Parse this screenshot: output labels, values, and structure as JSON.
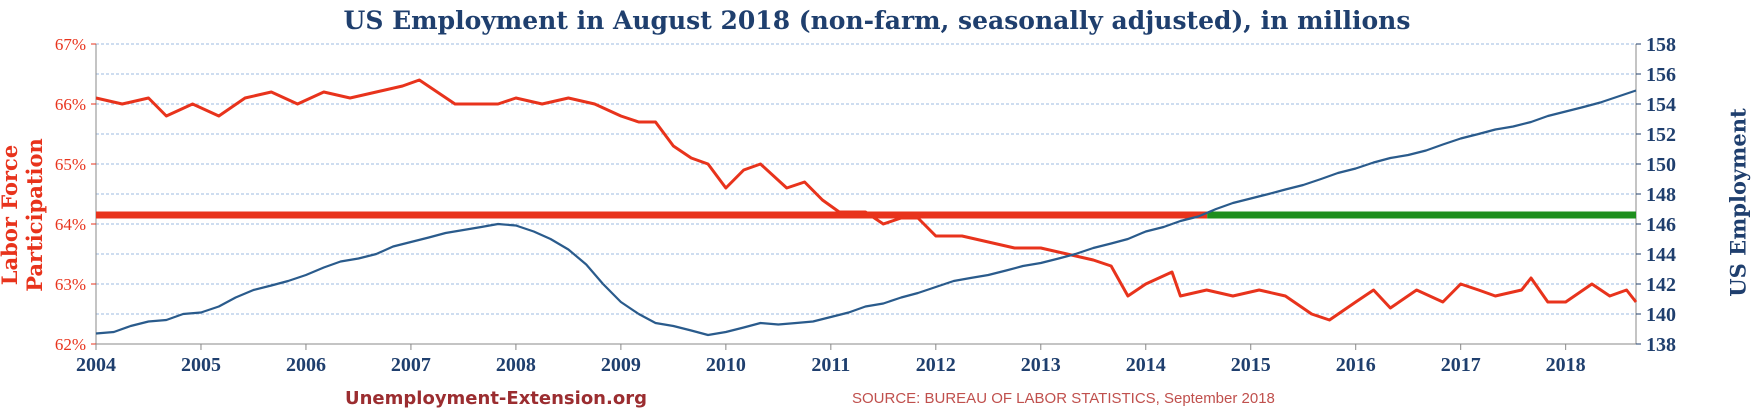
{
  "title": "US Employment in August 2018 (non-farm, seasonally adjusted), in millions",
  "left_axis_label": "Labor Force Participation",
  "right_axis_label": "US Employment",
  "footer_site": "Unemployment-Extension.org",
  "footer_source": "SOURCE: BUREAU OF LABOR STATISTICS,  September 2018",
  "colors": {
    "participation": "#e8331c",
    "employment": "#2a5b8c",
    "reference_above": "#1e8f1e",
    "reference_below": "#e8331c",
    "left_axis_text": "#e8331c",
    "right_axis_text": "#1f3f6e",
    "x_axis_text": "#1f3f6e",
    "grid": "#9dbbe0"
  },
  "chart_data": {
    "type": "line",
    "x_range": [
      2004.0,
      2018.67
    ],
    "x_ticks": [
      "2004",
      "2005",
      "2006",
      "2007",
      "2008",
      "2009",
      "2010",
      "2011",
      "2012",
      "2013",
      "2014",
      "2015",
      "2016",
      "2017",
      "2018"
    ],
    "y_left": {
      "range": [
        62,
        67
      ],
      "ticks": [
        "62%",
        "63%",
        "64%",
        "65%",
        "66%",
        "67%"
      ],
      "label": "Labor Force Participation"
    },
    "y_right": {
      "range": [
        138,
        158
      ],
      "ticks": [
        "138",
        "140",
        "142",
        "144",
        "146",
        "148",
        "150",
        "152",
        "154",
        "156",
        "158"
      ],
      "label": "US Employment"
    },
    "grid": true,
    "reference_line": {
      "axis": "left",
      "value": 64.15,
      "description": "green where employment is above it, red where below"
    },
    "series": [
      {
        "name": "Labor Force Participation",
        "axis": "left",
        "x": [
          2004.0,
          2004.25,
          2004.5,
          2004.67,
          2004.92,
          2005.17,
          2005.42,
          2005.67,
          2005.92,
          2006.17,
          2006.42,
          2006.67,
          2006.92,
          2007.08,
          2007.25,
          2007.42,
          2007.67,
          2007.83,
          2008.0,
          2008.25,
          2008.5,
          2008.75,
          2009.0,
          2009.17,
          2009.33,
          2009.5,
          2009.67,
          2009.83,
          2010.0,
          2010.17,
          2010.33,
          2010.58,
          2010.75,
          2010.92,
          2011.08,
          2011.33,
          2011.5,
          2011.67,
          2011.83,
          2012.0,
          2012.25,
          2012.5,
          2012.75,
          2013.0,
          2013.25,
          2013.5,
          2013.67,
          2013.83,
          2014.0,
          2014.25,
          2014.33,
          2014.58,
          2014.83,
          2015.08,
          2015.33,
          2015.58,
          2015.75,
          2016.0,
          2016.17,
          2016.33,
          2016.58,
          2016.83,
          2017.0,
          2017.17,
          2017.33,
          2017.58,
          2017.67,
          2017.83,
          2018.0,
          2018.25,
          2018.42,
          2018.58,
          2018.67
        ],
        "y": [
          66.1,
          66.0,
          66.1,
          65.8,
          66.0,
          65.8,
          66.1,
          66.2,
          66.0,
          66.2,
          66.1,
          66.2,
          66.3,
          66.4,
          66.2,
          66.0,
          66.0,
          66.0,
          66.1,
          66.0,
          66.1,
          66.0,
          65.8,
          65.7,
          65.7,
          65.3,
          65.1,
          65.0,
          64.6,
          64.9,
          65.0,
          64.6,
          64.7,
          64.4,
          64.2,
          64.2,
          64.0,
          64.1,
          64.1,
          63.8,
          63.8,
          63.7,
          63.6,
          63.6,
          63.5,
          63.4,
          63.3,
          62.8,
          63.0,
          63.2,
          62.8,
          62.9,
          62.8,
          62.9,
          62.8,
          62.5,
          62.4,
          62.7,
          62.9,
          62.6,
          62.9,
          62.7,
          63.0,
          62.9,
          62.8,
          62.9,
          63.1,
          62.7,
          62.7,
          63.0,
          62.8,
          62.9,
          62.7
        ]
      },
      {
        "name": "US Employment",
        "axis": "right",
        "x": [
          2004.0,
          2004.17,
          2004.33,
          2004.5,
          2004.67,
          2004.83,
          2005.0,
          2005.17,
          2005.33,
          2005.5,
          2005.67,
          2005.83,
          2006.0,
          2006.17,
          2006.33,
          2006.5,
          2006.67,
          2006.83,
          2007.0,
          2007.17,
          2007.33,
          2007.5,
          2007.67,
          2007.83,
          2008.0,
          2008.17,
          2008.33,
          2008.5,
          2008.67,
          2008.83,
          2009.0,
          2009.17,
          2009.33,
          2009.5,
          2009.67,
          2009.83,
          2010.0,
          2010.17,
          2010.33,
          2010.5,
          2010.67,
          2010.83,
          2011.0,
          2011.17,
          2011.33,
          2011.5,
          2011.67,
          2011.83,
          2012.0,
          2012.17,
          2012.33,
          2012.5,
          2012.67,
          2012.83,
          2013.0,
          2013.17,
          2013.33,
          2013.5,
          2013.67,
          2013.83,
          2014.0,
          2014.17,
          2014.33,
          2014.5,
          2014.67,
          2014.83,
          2015.0,
          2015.17,
          2015.33,
          2015.5,
          2015.67,
          2015.83,
          2016.0,
          2016.17,
          2016.33,
          2016.5,
          2016.67,
          2016.83,
          2017.0,
          2017.17,
          2017.33,
          2017.5,
          2017.67,
          2017.83,
          2018.0,
          2018.17,
          2018.33,
          2018.5,
          2018.67
        ],
        "y": [
          138.7,
          138.8,
          139.2,
          139.5,
          139.6,
          140.0,
          140.1,
          140.5,
          141.1,
          141.6,
          141.9,
          142.2,
          142.6,
          143.1,
          143.5,
          143.7,
          144.0,
          144.5,
          144.8,
          145.1,
          145.4,
          145.6,
          145.8,
          146.0,
          145.9,
          145.5,
          145.0,
          144.3,
          143.3,
          142.0,
          140.8,
          140.0,
          139.4,
          139.2,
          138.9,
          138.6,
          138.8,
          139.1,
          139.4,
          139.3,
          139.4,
          139.5,
          139.8,
          140.1,
          140.5,
          140.7,
          141.1,
          141.4,
          141.8,
          142.2,
          142.4,
          142.6,
          142.9,
          143.2,
          143.4,
          143.7,
          144.0,
          144.4,
          144.7,
          145.0,
          145.5,
          145.8,
          146.2,
          146.5,
          147.0,
          147.4,
          147.7,
          148.0,
          148.3,
          148.6,
          149.0,
          149.4,
          149.7,
          150.1,
          150.4,
          150.6,
          150.9,
          151.3,
          151.7,
          152.0,
          152.3,
          152.5,
          152.8,
          153.2,
          153.5,
          153.8,
          154.1,
          154.5,
          154.9
        ]
      }
    ]
  }
}
